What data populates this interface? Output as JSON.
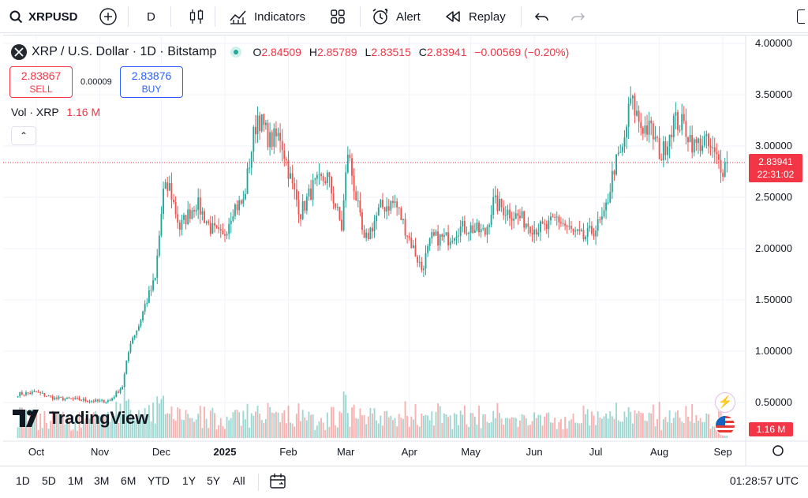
{
  "toolbar": {
    "symbol": "XRPUSD",
    "interval": "D",
    "indicators_label": "Indicators",
    "alert_label": "Alert",
    "replay_label": "Replay"
  },
  "legend": {
    "title": "XRP / U.S. Dollar · 1D · Bitstamp",
    "open_label": "O",
    "open": "2.84509",
    "high_label": "H",
    "high": "2.85789",
    "low_label": "L",
    "low": "2.83515",
    "close_label": "C",
    "close": "2.83941",
    "change": "−0.00569 (−0.20%)"
  },
  "trade": {
    "sell_price": "2.83867",
    "sell_label": "SELL",
    "spread": "0.00009",
    "buy_price": "2.83876",
    "buy_label": "BUY"
  },
  "volume": {
    "label": "Vol · XRP",
    "value": "1.16 M"
  },
  "price_axis": {
    "labels": [
      "4.00000",
      "3.50000",
      "3.00000",
      "2.50000",
      "2.00000",
      "1.50000",
      "1.00000",
      "0.50000"
    ],
    "last_price": "2.83941",
    "countdown": "22:31:02",
    "volume_badge": "1.16 M"
  },
  "time_axis": {
    "labels": [
      "Oct",
      "Nov",
      "Dec",
      "2025",
      "Feb",
      "Mar",
      "Apr",
      "May",
      "Jun",
      "Jul",
      "Aug",
      "Sep"
    ]
  },
  "bottom": {
    "ranges": [
      "1D",
      "5D",
      "1M",
      "3M",
      "6M",
      "YTD",
      "1Y",
      "5Y",
      "All"
    ],
    "clock": "01:28:57 UTC"
  },
  "brand": {
    "logo_text": "TradingView"
  },
  "colors": {
    "up": "#26a69a",
    "down": "#ef5350",
    "accent": "#2962ff",
    "price_line": "#f23645"
  },
  "chart_data": {
    "type": "candlestick",
    "symbol": "XRP / U.S. Dollar",
    "interval": "1D",
    "exchange": "Bitstamp",
    "ylim": [
      0.3,
      4.05
    ],
    "price_ticks": [
      4.0,
      3.5,
      3.0,
      2.5,
      2.0,
      1.5,
      1.0,
      0.5
    ],
    "x_ticks": [
      "Oct",
      "Nov",
      "Dec",
      "2025",
      "Feb",
      "Mar",
      "Apr",
      "May",
      "Jun",
      "Jul",
      "Aug",
      "Sep"
    ],
    "close_path": [
      [
        "2024-09-22",
        0.58
      ],
      [
        "2024-10-01",
        0.6
      ],
      [
        "2024-10-10",
        0.54
      ],
      [
        "2024-10-20",
        0.53
      ],
      [
        "2024-11-01",
        0.51
      ],
      [
        "2024-11-06",
        0.52
      ],
      [
        "2024-11-12",
        0.66
      ],
      [
        "2024-11-16",
        1.1
      ],
      [
        "2024-11-20",
        1.25
      ],
      [
        "2024-11-23",
        1.45
      ],
      [
        "2024-11-28",
        1.7
      ],
      [
        "2024-12-02",
        2.55
      ],
      [
        "2024-12-05",
        2.6
      ],
      [
        "2024-12-10",
        2.2
      ],
      [
        "2024-12-13",
        2.3
      ],
      [
        "2024-12-18",
        2.45
      ],
      [
        "2024-12-25",
        2.2
      ],
      [
        "2024-12-31",
        2.1
      ],
      [
        "2025-01-05",
        2.4
      ],
      [
        "2025-01-10",
        2.45
      ],
      [
        "2025-01-15",
        3.1
      ],
      [
        "2025-01-17",
        3.3
      ],
      [
        "2025-01-23",
        3.05
      ],
      [
        "2025-01-28",
        3.1
      ],
      [
        "2025-02-03",
        2.6
      ],
      [
        "2025-02-07",
        2.35
      ],
      [
        "2025-02-13",
        2.6
      ],
      [
        "2025-02-20",
        2.7
      ],
      [
        "2025-02-27",
        2.2
      ],
      [
        "2025-03-02",
        2.95
      ],
      [
        "2025-03-10",
        2.05
      ],
      [
        "2025-03-18",
        2.4
      ],
      [
        "2025-03-25",
        2.45
      ],
      [
        "2025-04-01",
        2.1
      ],
      [
        "2025-04-07",
        1.8
      ],
      [
        "2025-04-12",
        2.1
      ],
      [
        "2025-04-20",
        2.1
      ],
      [
        "2025-04-25",
        2.2
      ],
      [
        "2025-05-01",
        2.2
      ],
      [
        "2025-05-08",
        2.15
      ],
      [
        "2025-05-12",
        2.45
      ],
      [
        "2025-05-20",
        2.35
      ],
      [
        "2025-05-25",
        2.3
      ],
      [
        "2025-06-01",
        2.2
      ],
      [
        "2025-06-07",
        2.2
      ],
      [
        "2025-06-12",
        2.3
      ],
      [
        "2025-06-20",
        2.15
      ],
      [
        "2025-06-25",
        2.1
      ],
      [
        "2025-07-01",
        2.2
      ],
      [
        "2025-07-05",
        2.3
      ],
      [
        "2025-07-10",
        2.8
      ],
      [
        "2025-07-14",
        2.95
      ],
      [
        "2025-07-18",
        3.45
      ],
      [
        "2025-07-23",
        3.2
      ],
      [
        "2025-07-28",
        3.15
      ],
      [
        "2025-08-02",
        2.9
      ],
      [
        "2025-08-08",
        3.25
      ],
      [
        "2025-08-13",
        3.2
      ],
      [
        "2025-08-18",
        3.0
      ],
      [
        "2025-08-23",
        3.05
      ],
      [
        "2025-08-28",
        2.9
      ],
      [
        "2025-09-01",
        2.79
      ],
      [
        "2025-09-03",
        2.84
      ]
    ],
    "last_close": 2.83941,
    "last_volume": "1.16 M"
  }
}
